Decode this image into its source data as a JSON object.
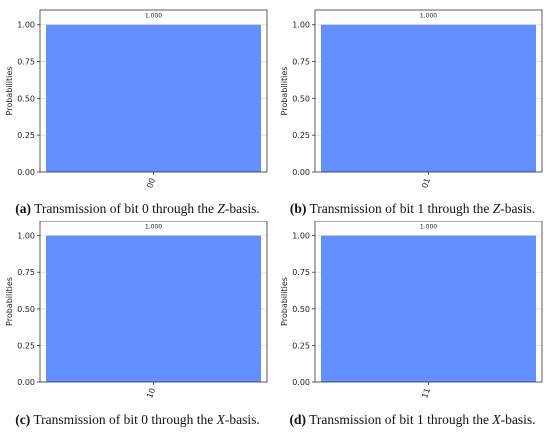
{
  "chart_data": [
    {
      "type": "bar",
      "panel_letter": "a",
      "categories": [
        "00"
      ],
      "values": [
        1.0
      ],
      "bar_labels": [
        "1.000"
      ],
      "ylabel": "Probabilities",
      "ylim": [
        0,
        1.1
      ],
      "yticks": [
        "0.00",
        "0.25",
        "0.50",
        "0.75",
        "1.00"
      ],
      "grid": true,
      "bar_color": "#648fff",
      "caption": {
        "letter": "(a)",
        "prefix": "Transmission of bit 0 through the",
        "basis": "Z",
        "suffix": "-basis."
      }
    },
    {
      "type": "bar",
      "panel_letter": "b",
      "categories": [
        "01"
      ],
      "values": [
        1.0
      ],
      "bar_labels": [
        "1.000"
      ],
      "ylabel": "Probabilities",
      "ylim": [
        0,
        1.1
      ],
      "yticks": [
        "0.00",
        "0.25",
        "0.50",
        "0.75",
        "1.00"
      ],
      "grid": true,
      "bar_color": "#648fff",
      "caption": {
        "letter": "(b)",
        "prefix": "Transmission of bit 1 through the",
        "basis": "Z",
        "suffix": "-basis."
      }
    },
    {
      "type": "bar",
      "panel_letter": "c",
      "categories": [
        "10"
      ],
      "values": [
        1.0
      ],
      "bar_labels": [
        "1.000"
      ],
      "ylabel": "Probabilities",
      "ylim": [
        0,
        1.1
      ],
      "yticks": [
        "0.00",
        "0.25",
        "0.50",
        "0.75",
        "1.00"
      ],
      "grid": true,
      "bar_color": "#648fff",
      "caption": {
        "letter": "(c)",
        "prefix": "Transmission of bit 0 through the",
        "basis": "X",
        "suffix": "-basis."
      }
    },
    {
      "type": "bar",
      "panel_letter": "d",
      "categories": [
        "11"
      ],
      "values": [
        1.0
      ],
      "bar_labels": [
        "1.000"
      ],
      "ylabel": "Probabilities",
      "ylim": [
        0,
        1.1
      ],
      "yticks": [
        "0.00",
        "0.25",
        "0.50",
        "0.75",
        "1.00"
      ],
      "grid": true,
      "bar_color": "#648fff",
      "caption": {
        "letter": "(d)",
        "prefix": "Transmission of bit 1 through the",
        "basis": "X",
        "suffix": "-basis."
      }
    }
  ]
}
